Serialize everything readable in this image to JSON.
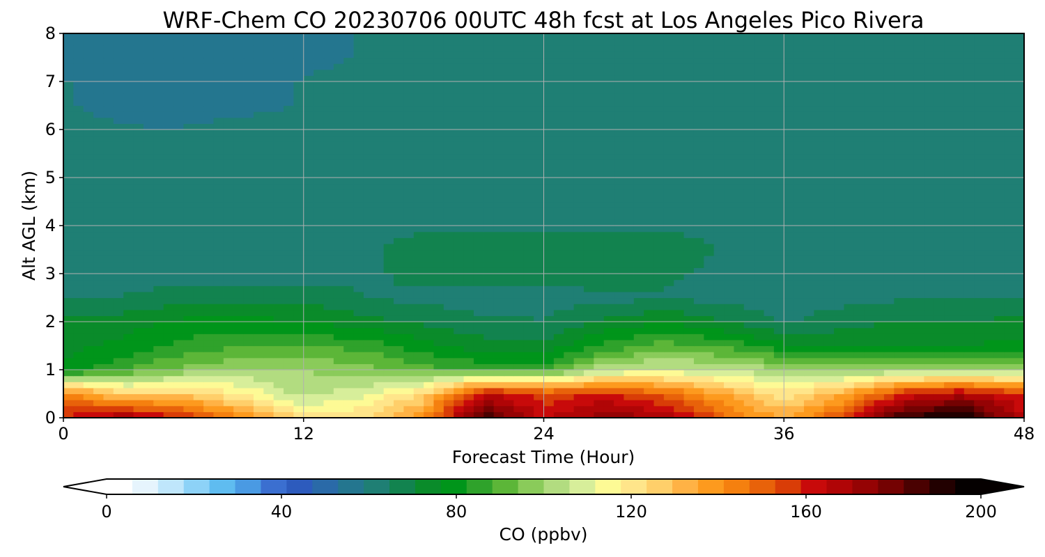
{
  "chart_data": {
    "type": "heatmap",
    "title": "WRF-Chem CO  20230706 00UTC 48h fcst at Los Angeles Pico Rivera",
    "xlabel": "Forecast Time (Hour)",
    "ylabel": "Alt AGL (km)",
    "xlim": [
      0,
      48
    ],
    "ylim": [
      0,
      8
    ],
    "x_ticks": [
      "0",
      "12",
      "24",
      "36",
      "48"
    ],
    "y_ticks": [
      "0",
      "1",
      "2",
      "3",
      "4",
      "5",
      "6",
      "7",
      "8"
    ],
    "grid": true,
    "colorbar": {
      "label": "CO  (ppbv)",
      "range": [
        0,
        200
      ],
      "ticks": [
        "0",
        "40",
        "80",
        "120",
        "160",
        "200"
      ],
      "extend": "both",
      "colors": [
        "#ffffff",
        "#e6f4fd",
        "#bfe6fb",
        "#8dd2f7",
        "#5fbcf0",
        "#4a9ae3",
        "#3b6fd0",
        "#2d5bbd",
        "#2a6aa8",
        "#24768f",
        "#1f7f74",
        "#12834f",
        "#0a8b2a",
        "#00951a",
        "#2fa22b",
        "#5cb638",
        "#8acb5a",
        "#b2dc80",
        "#d7ee9a",
        "#fdfa95",
        "#ffe58a",
        "#ffcf6a",
        "#ffb245",
        "#fd9a1e",
        "#f5800f",
        "#e8620a",
        "#d93d07",
        "#c80a0a",
        "#b00506",
        "#950304",
        "#740202",
        "#4a0101",
        "#220000",
        "#050000"
      ]
    },
    "altitudes_km": [
      0.0,
      0.5,
      1.0,
      1.5,
      2.0,
      2.5,
      3.0,
      3.5,
      4.0,
      4.5,
      5.0,
      5.5,
      6.0,
      6.5,
      7.0,
      7.5,
      8.0
    ],
    "times_h": [
      0,
      3,
      6,
      9,
      12,
      15,
      18,
      21,
      24,
      27,
      30,
      33,
      36,
      39,
      42,
      45,
      48
    ],
    "values_ppbv": [
      [
        160,
        172,
        160,
        140,
        123,
        123,
        140,
        188,
        163,
        175,
        170,
        150,
        133,
        155,
        190,
        196,
        165
      ],
      [
        145,
        125,
        127,
        117,
        103,
        110,
        125,
        165,
        155,
        160,
        150,
        135,
        120,
        135,
        160,
        168,
        158
      ],
      [
        78,
        88,
        96,
        100,
        100,
        97,
        90,
        87,
        86,
        104,
        108,
        105,
        101,
        98,
        100,
        100,
        100
      ],
      [
        74,
        78,
        84,
        88,
        88,
        86,
        79,
        73,
        72,
        84,
        91,
        87,
        78,
        76,
        77,
        77,
        78
      ],
      [
        72,
        74,
        78,
        78,
        77,
        73,
        69,
        66,
        65,
        72,
        76,
        71,
        64,
        68,
        71,
        70,
        73
      ],
      [
        64,
        65,
        68,
        69,
        69,
        65,
        63,
        62,
        62,
        63,
        64,
        63,
        61,
        63,
        64,
        64,
        65
      ],
      [
        61,
        61,
        62,
        62,
        62,
        63,
        67,
        68,
        68,
        68,
        66,
        63,
        61,
        61,
        61,
        61,
        61
      ],
      [
        61,
        61,
        61,
        61,
        62,
        64,
        67,
        69,
        68,
        68,
        68,
        64,
        62,
        61,
        61,
        61,
        61
      ],
      [
        61,
        61,
        61,
        61,
        61,
        62,
        64,
        64,
        63,
        63,
        64,
        63,
        62,
        61,
        61,
        61,
        61
      ],
      [
        61,
        61,
        61,
        61,
        61,
        61,
        62,
        62,
        61,
        61,
        62,
        61,
        61,
        61,
        61,
        61,
        61
      ],
      [
        61,
        61,
        61,
        61,
        61,
        61,
        61,
        61,
        61,
        61,
        61,
        61,
        61,
        61,
        61,
        61,
        61
      ],
      [
        60,
        60,
        60,
        60,
        60,
        60,
        60,
        60,
        60,
        60,
        60,
        60,
        60,
        60,
        60,
        60,
        60
      ],
      [
        60,
        59,
        59,
        60,
        60,
        60,
        60,
        60,
        60,
        59,
        59,
        60,
        60,
        60,
        60,
        60,
        60
      ],
      [
        59,
        58,
        57,
        58,
        59,
        60,
        60,
        60,
        60,
        59,
        59,
        60,
        60,
        60,
        60,
        60,
        60
      ],
      [
        59,
        58,
        56,
        58,
        59,
        60,
        60,
        59,
        59,
        59,
        59,
        60,
        60,
        60,
        60,
        61,
        61
      ],
      [
        58,
        57,
        55,
        56,
        58,
        59,
        59,
        59,
        59,
        59,
        60,
        60,
        61,
        62,
        62,
        62,
        61
      ],
      [
        58,
        57,
        55,
        54,
        58,
        59,
        59,
        59,
        59,
        59,
        60,
        61,
        62,
        62,
        62,
        61,
        61
      ]
    ]
  }
}
